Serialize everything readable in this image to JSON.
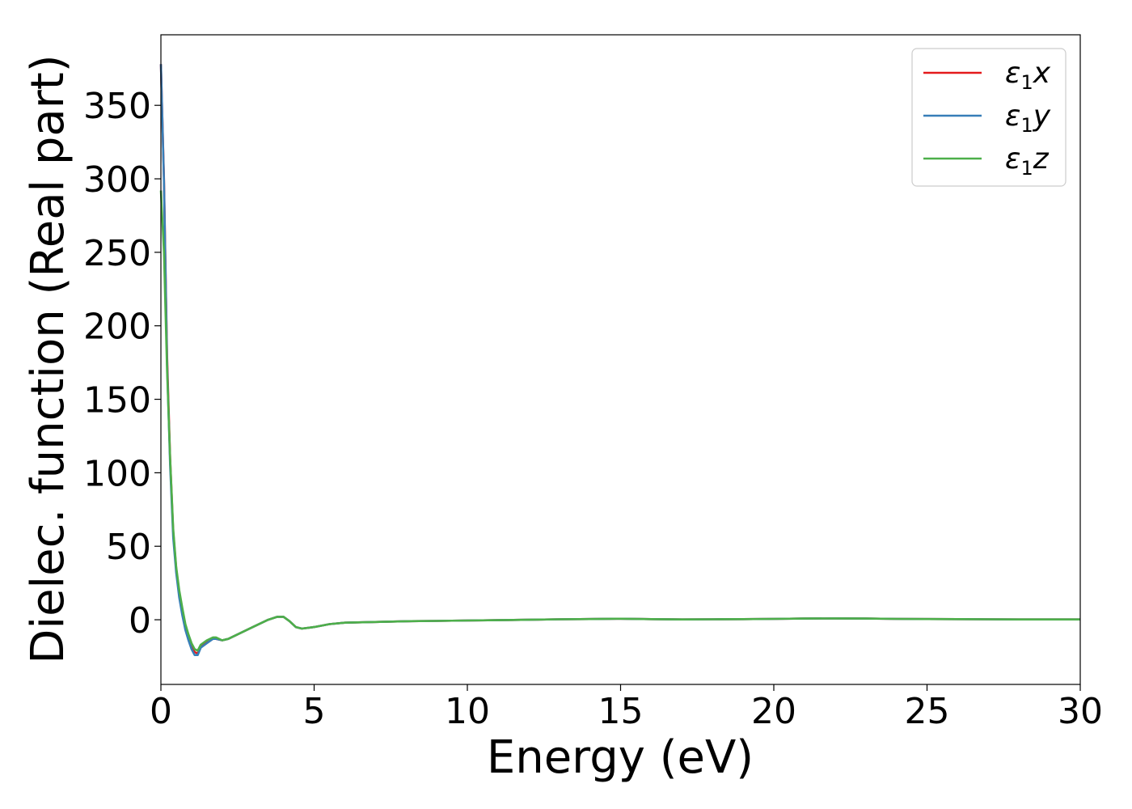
{
  "chart_data": {
    "type": "line",
    "title": "",
    "xlabel": "Energy (eV)",
    "ylabel": "Dielec. function (Real part)",
    "xlim": [
      0,
      30
    ],
    "ylim": [
      -44,
      398
    ],
    "xticks": [
      0,
      5,
      10,
      15,
      20,
      25,
      30
    ],
    "yticks": [
      0,
      50,
      100,
      150,
      200,
      250,
      300,
      350
    ],
    "grid": false,
    "legend_position": "top-right",
    "series": [
      {
        "name": "ε1x",
        "legend": {
          "base": "ε",
          "sub": "1",
          "axis": "x"
        },
        "color": "#e41a1c",
        "x": [
          0,
          0.1,
          0.2,
          0.3,
          0.4,
          0.5,
          0.6,
          0.7,
          0.8,
          0.9,
          1.0,
          1.1,
          1.2,
          1.3,
          1.5,
          1.7,
          1.8,
          2.0,
          2.2,
          2.5,
          3.0,
          3.5,
          3.8,
          4.0,
          4.2,
          4.4,
          4.6,
          5.0,
          5.5,
          6.0,
          7.0,
          8.0,
          9.0,
          10.0,
          11.0,
          12.0,
          13.0,
          14.0,
          15.0,
          16.0,
          17.0,
          18.0,
          19.0,
          20.0,
          21.0,
          22.0,
          23.0,
          24.0,
          25.0,
          26.0,
          27.0,
          28.0,
          29.0,
          30.0
        ],
        "y": [
          378,
          300,
          180,
          110,
          60,
          35,
          18,
          5,
          -5,
          -12,
          -18,
          -22,
          -23,
          -18,
          -15,
          -13,
          -13,
          -14,
          -13,
          -10,
          -5,
          0,
          2,
          2,
          -1,
          -5,
          -6,
          -5,
          -3,
          -2,
          -1.5,
          -1,
          -0.8,
          -0.5,
          -0.3,
          0,
          0.3,
          0.5,
          0.7,
          0.4,
          0.2,
          0.3,
          0.4,
          0.6,
          0.8,
          0.9,
          0.8,
          0.6,
          0.5,
          0.4,
          0.3,
          0.2,
          0.2,
          0.2
        ]
      },
      {
        "name": "ε1y",
        "legend": {
          "base": "ε",
          "sub": "1",
          "axis": "y"
        },
        "color": "#377eb8",
        "x": [
          0,
          0.1,
          0.2,
          0.3,
          0.4,
          0.5,
          0.6,
          0.7,
          0.8,
          0.9,
          1.0,
          1.1,
          1.2,
          1.3,
          1.5,
          1.7,
          1.8,
          2.0,
          2.2,
          2.5,
          3.0,
          3.5,
          3.8,
          4.0,
          4.2,
          4.4,
          4.6,
          5.0,
          5.5,
          6.0,
          7.0,
          8.0,
          9.0,
          10.0,
          11.0,
          12.0,
          13.0,
          14.0,
          15.0,
          16.0,
          17.0,
          18.0,
          19.0,
          20.0,
          21.0,
          22.0,
          23.0,
          24.0,
          25.0,
          26.0,
          27.0,
          28.0,
          29.0,
          30.0
        ],
        "y": [
          378,
          298,
          175,
          105,
          56,
          32,
          15,
          3,
          -7,
          -14,
          -20,
          -24,
          -24,
          -19,
          -16,
          -13,
          -13,
          -14,
          -13,
          -10,
          -5,
          0,
          2,
          2,
          -1,
          -5,
          -6,
          -5,
          -3,
          -2,
          -1.5,
          -1,
          -0.8,
          -0.5,
          -0.3,
          0,
          0.3,
          0.5,
          0.7,
          0.4,
          0.2,
          0.3,
          0.4,
          0.6,
          0.8,
          0.9,
          0.8,
          0.6,
          0.5,
          0.4,
          0.3,
          0.2,
          0.2,
          0.2
        ]
      },
      {
        "name": "ε1z",
        "legend": {
          "base": "ε",
          "sub": "1",
          "axis": "z"
        },
        "color": "#4daf4a",
        "x": [
          0,
          0.1,
          0.2,
          0.3,
          0.4,
          0.5,
          0.6,
          0.7,
          0.8,
          0.9,
          1.0,
          1.1,
          1.2,
          1.3,
          1.5,
          1.7,
          1.8,
          2.0,
          2.2,
          2.5,
          3.0,
          3.5,
          3.8,
          4.0,
          4.2,
          4.4,
          4.6,
          5.0,
          5.5,
          6.0,
          7.0,
          8.0,
          9.0,
          10.0,
          11.0,
          12.0,
          13.0,
          14.0,
          15.0,
          16.0,
          17.0,
          18.0,
          19.0,
          20.0,
          21.0,
          22.0,
          23.0,
          24.0,
          25.0,
          26.0,
          27.0,
          28.0,
          29.0,
          30.0
        ],
        "y": [
          292,
          250,
          170,
          110,
          62,
          36,
          20,
          8,
          -3,
          -10,
          -16,
          -20,
          -21,
          -17,
          -14,
          -12,
          -12,
          -14,
          -13,
          -10,
          -5,
          0,
          2,
          2,
          -1,
          -5,
          -6,
          -5,
          -3,
          -2,
          -1.5,
          -1,
          -0.8,
          -0.5,
          -0.3,
          0,
          0.3,
          0.5,
          0.7,
          0.4,
          0.2,
          0.3,
          0.4,
          0.6,
          0.8,
          0.9,
          0.8,
          0.6,
          0.5,
          0.4,
          0.3,
          0.2,
          0.2,
          0.2
        ]
      }
    ]
  }
}
